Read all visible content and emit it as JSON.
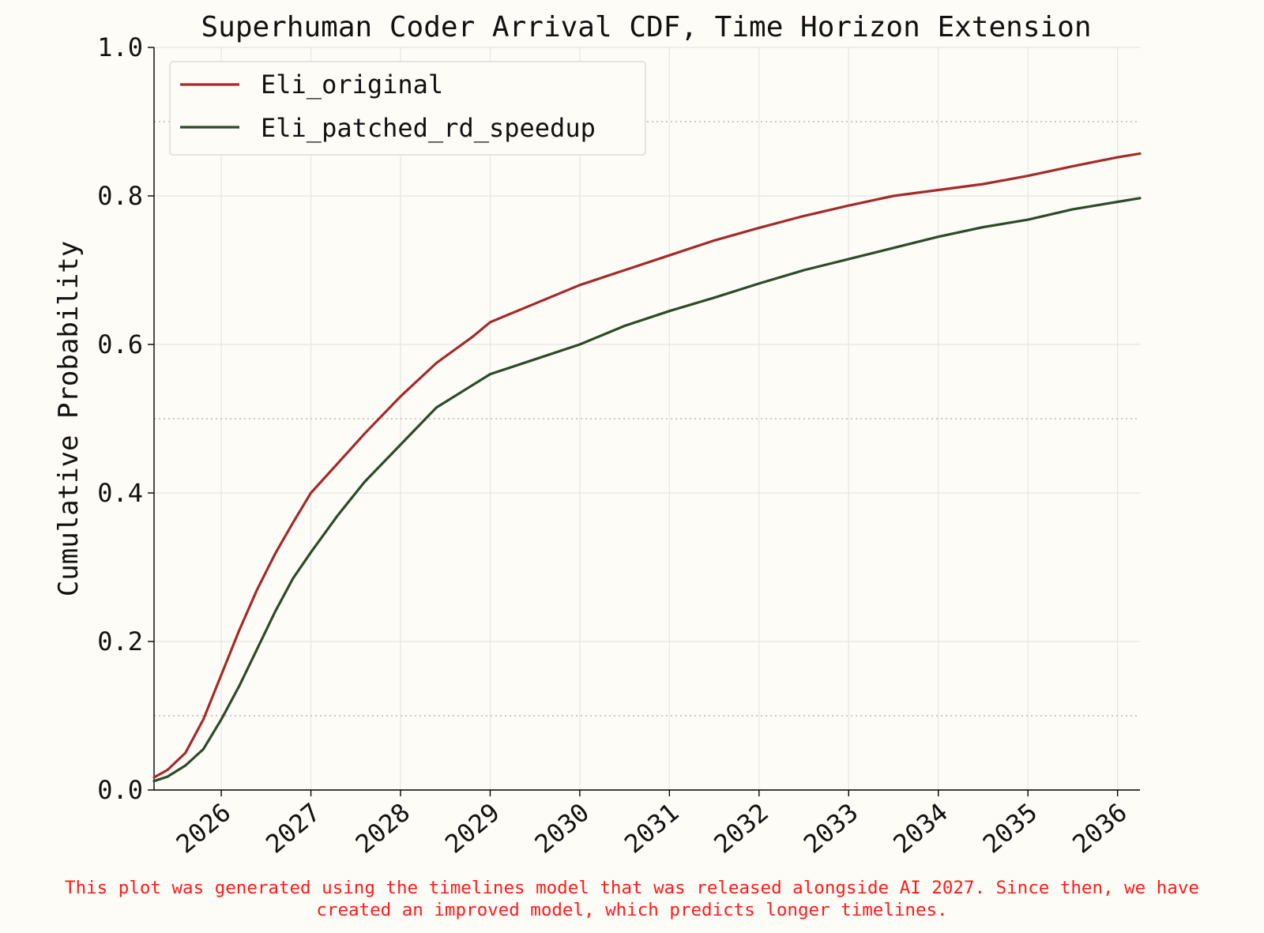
{
  "chart_data": {
    "type": "line",
    "title": "Superhuman Coder Arrival CDF, Time Horizon Extension",
    "xlabel": "",
    "ylabel": "Cumulative Probability",
    "x_ticks": [
      "2026",
      "2027",
      "2028",
      "2029",
      "2030",
      "2031",
      "2032",
      "2033",
      "2034",
      "2035",
      "2036"
    ],
    "y_ticks": [
      "0.0",
      "0.2",
      "0.4",
      "0.6",
      "0.8",
      "1.0"
    ],
    "xlim": [
      2025.25,
      2036.25
    ],
    "ylim": [
      0,
      1.0
    ],
    "reference_lines": [
      0.1,
      0.5,
      0.9
    ],
    "grid": true,
    "legend_position": "top-left",
    "series": [
      {
        "name": "Eli_original",
        "color": "#a52a2a",
        "x": [
          2025.25,
          2025.4,
          2025.6,
          2025.8,
          2026.0,
          2026.2,
          2026.4,
          2026.6,
          2026.8,
          2027.0,
          2027.3,
          2027.6,
          2028.0,
          2028.4,
          2028.8,
          2029.0,
          2029.5,
          2030.0,
          2030.5,
          2031.0,
          2031.5,
          2032.0,
          2032.5,
          2033.0,
          2033.5,
          2034.0,
          2034.5,
          2035.0,
          2035.5,
          2036.0,
          2036.25
        ],
        "y": [
          0.017,
          0.027,
          0.05,
          0.095,
          0.155,
          0.215,
          0.27,
          0.318,
          0.36,
          0.4,
          0.44,
          0.48,
          0.53,
          0.575,
          0.61,
          0.63,
          0.655,
          0.68,
          0.7,
          0.72,
          0.74,
          0.757,
          0.773,
          0.787,
          0.8,
          0.808,
          0.816,
          0.827,
          0.84,
          0.852,
          0.857
        ]
      },
      {
        "name": "Eli_patched_rd_speedup",
        "color": "#2d4a2b",
        "x": [
          2025.25,
          2025.4,
          2025.6,
          2025.8,
          2026.0,
          2026.2,
          2026.4,
          2026.6,
          2026.8,
          2027.0,
          2027.3,
          2027.6,
          2028.0,
          2028.4,
          2028.8,
          2029.0,
          2029.5,
          2030.0,
          2030.5,
          2031.0,
          2031.5,
          2032.0,
          2032.5,
          2033.0,
          2033.5,
          2034.0,
          2034.5,
          2035.0,
          2035.5,
          2036.0,
          2036.25
        ],
        "y": [
          0.012,
          0.018,
          0.033,
          0.055,
          0.095,
          0.14,
          0.19,
          0.24,
          0.285,
          0.32,
          0.37,
          0.415,
          0.465,
          0.515,
          0.545,
          0.56,
          0.58,
          0.6,
          0.625,
          0.645,
          0.663,
          0.682,
          0.7,
          0.715,
          0.73,
          0.745,
          0.758,
          0.768,
          0.782,
          0.792,
          0.797
        ]
      }
    ]
  },
  "footnote": {
    "line1": "This plot was generated using the timelines model that was released alongside AI 2027. Since then, we have",
    "line2": "created an improved model, which predicts longer timelines."
  }
}
